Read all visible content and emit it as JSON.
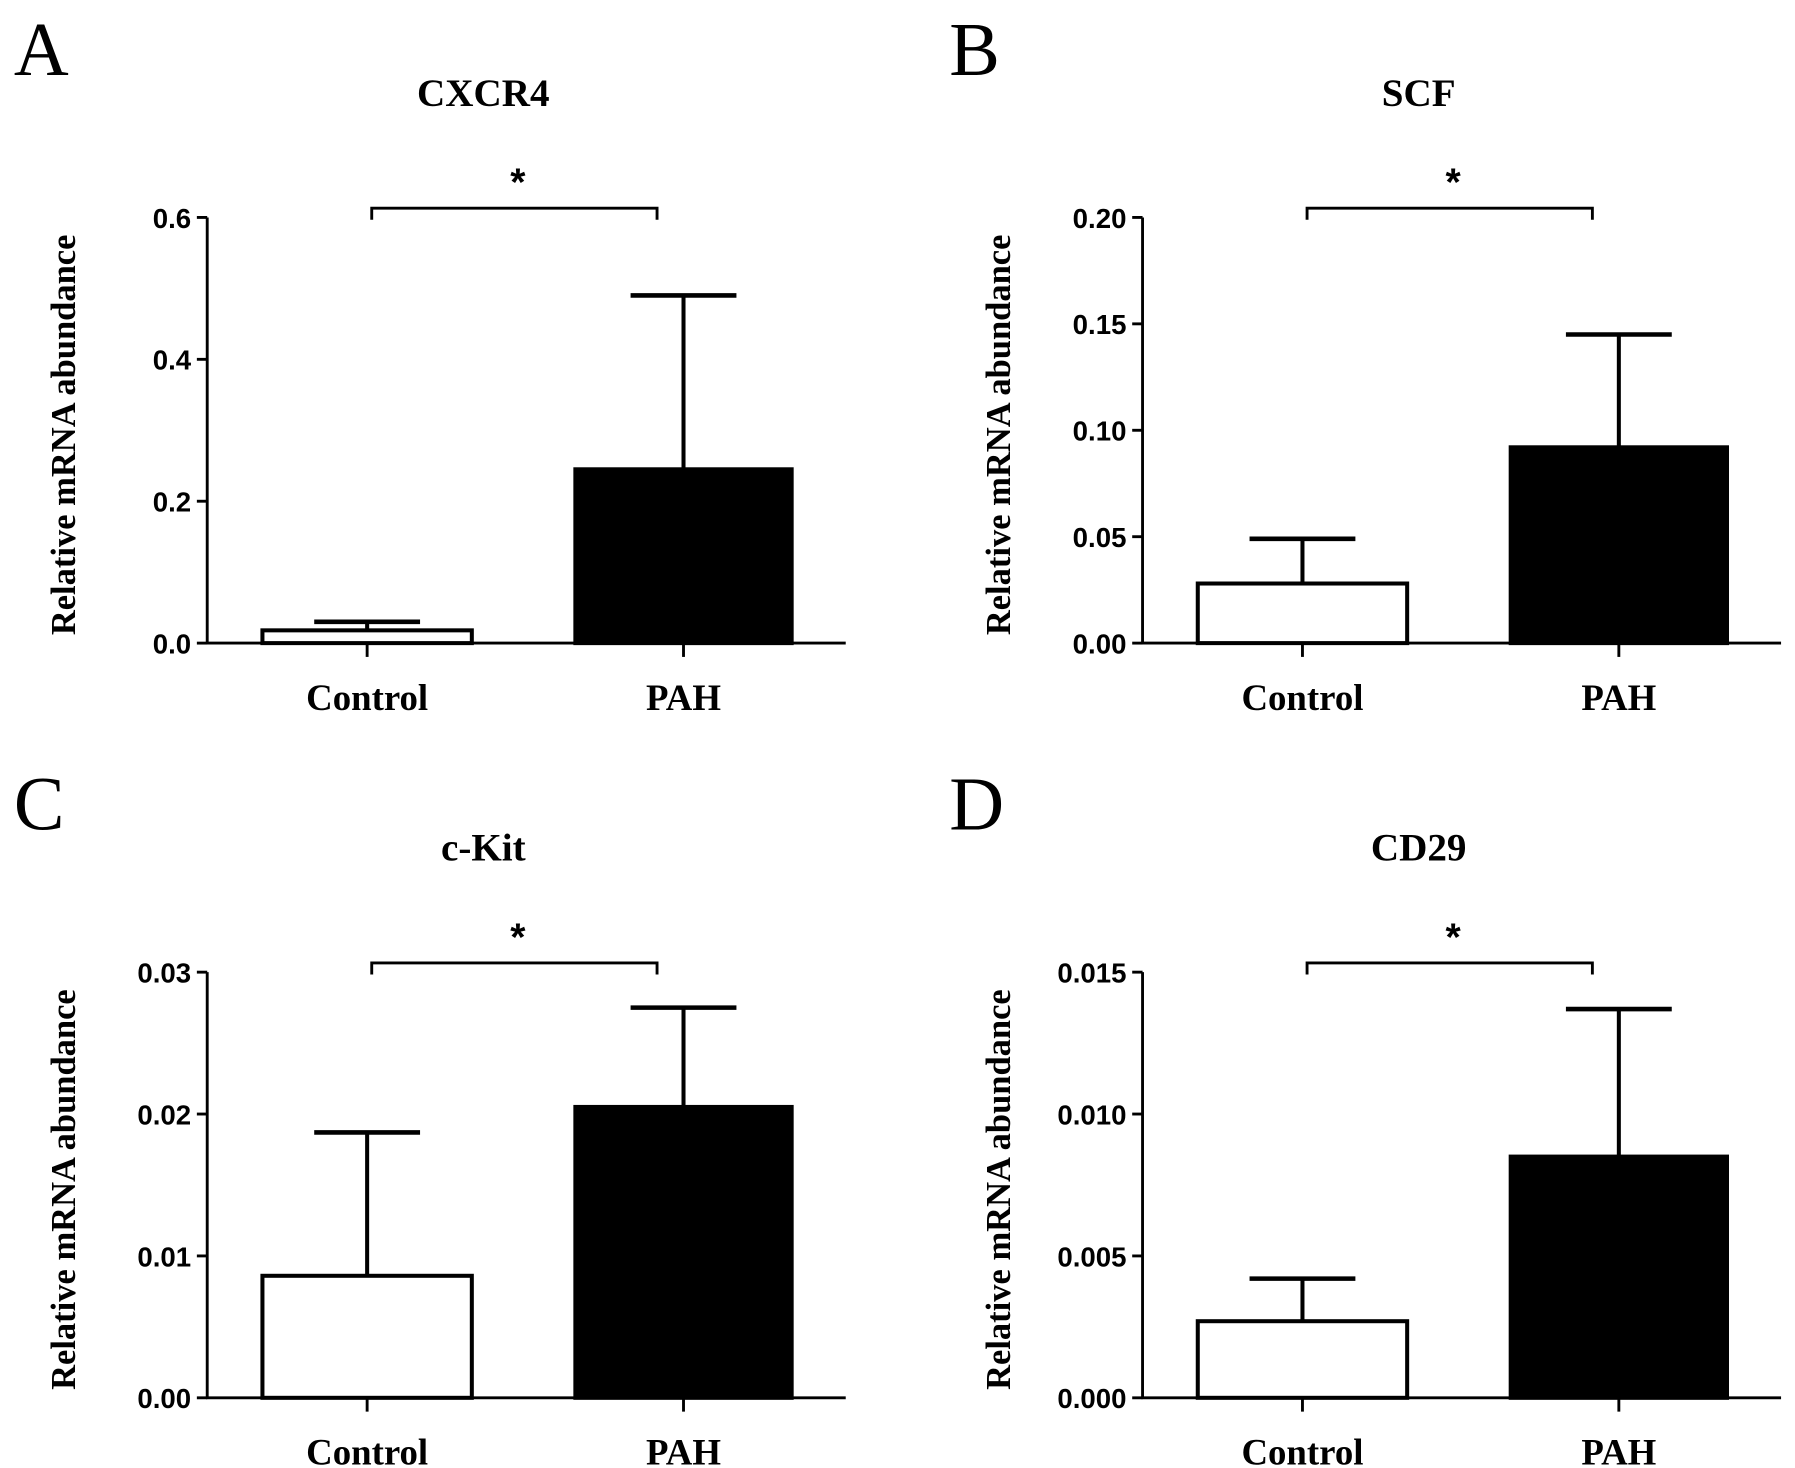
{
  "chart_data": [
    {
      "type": "bar",
      "panel": "A",
      "title": "CXCR4",
      "ylabel": "Relative mRNA abundance",
      "xlabel": "",
      "categories": [
        "Control",
        "PAH"
      ],
      "values": [
        0.018,
        0.245
      ],
      "error_upper": [
        0.03,
        0.49
      ],
      "fills": [
        "#ffffff",
        "#000000"
      ],
      "ylim": [
        0,
        0.6
      ],
      "yticks": [
        0.0,
        0.2,
        0.4,
        0.6
      ],
      "ytick_labels": [
        "0.0",
        "0.2",
        "0.4",
        "0.6"
      ],
      "significance": "*"
    },
    {
      "type": "bar",
      "panel": "B",
      "title": "SCF",
      "ylabel": "Relative mRNA abundance",
      "xlabel": "",
      "categories": [
        "Control",
        "PAH"
      ],
      "values": [
        0.028,
        0.092
      ],
      "error_upper": [
        0.049,
        0.145
      ],
      "fills": [
        "#ffffff",
        "#000000"
      ],
      "ylim": [
        0,
        0.2
      ],
      "yticks": [
        0,
        0.05,
        0.1,
        0.15,
        0.2
      ],
      "ytick_labels": [
        "0.00",
        "0.05",
        "0.10",
        "0.15",
        "0.20"
      ],
      "significance": "*"
    },
    {
      "type": "bar",
      "panel": "C",
      "title": "c-Kit",
      "ylabel": "Relative mRNA abundance",
      "xlabel": "",
      "categories": [
        "Control",
        "PAH"
      ],
      "values": [
        0.0086,
        0.0205
      ],
      "error_upper": [
        0.0187,
        0.0275
      ],
      "fills": [
        "#ffffff",
        "#000000"
      ],
      "ylim": [
        0,
        0.03
      ],
      "yticks": [
        0,
        0.01,
        0.02,
        0.03
      ],
      "ytick_labels": [
        "0.00",
        "0.01",
        "0.02",
        "0.03"
      ],
      "significance": "*"
    },
    {
      "type": "bar",
      "panel": "D",
      "title": "CD29",
      "ylabel": "Relative mRNA abundance",
      "xlabel": "",
      "categories": [
        "Control",
        "PAH"
      ],
      "values": [
        0.0027,
        0.0085
      ],
      "error_upper": [
        0.0042,
        0.0137
      ],
      "fills": [
        "#ffffff",
        "#000000"
      ],
      "ylim": [
        0,
        0.015
      ],
      "yticks": [
        0,
        0.005,
        0.01,
        0.015
      ],
      "ytick_labels": [
        "0.000",
        "0.005",
        "0.010",
        "0.015"
      ],
      "significance": "*"
    }
  ]
}
